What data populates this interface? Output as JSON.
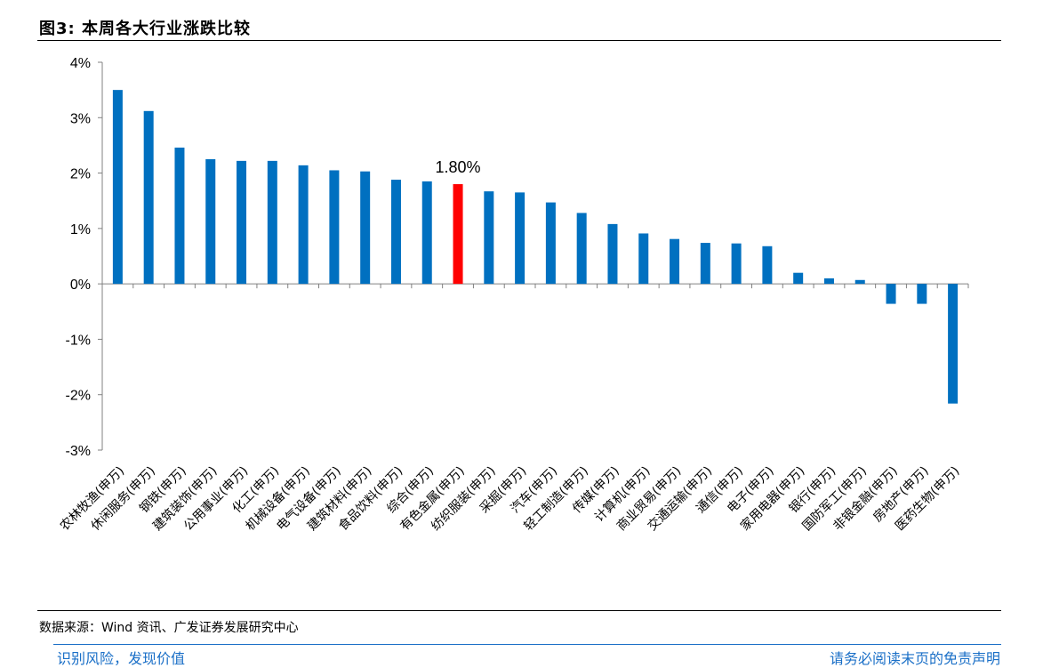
{
  "title": "图3:  本周各大行业涨跌比较",
  "source": "数据来源：Wind 资讯、广发证券发展研究中心",
  "footer": {
    "left": "识别风险，发现价值",
    "right": "请务必阅读末页的免责声明"
  },
  "colors": {
    "bar": "#0070C0",
    "highlight": "#FF0000",
    "axis": "#808080",
    "footer": "#1a6fc7"
  },
  "chart_data": {
    "type": "bar",
    "title": "本周各大行业涨跌比较",
    "xlabel": "",
    "ylabel": "",
    "ylim": [
      -3,
      4
    ],
    "yticks": [
      4,
      3,
      2,
      1,
      0,
      -1,
      -2,
      -3
    ],
    "ytick_labels": [
      "4%",
      "3%",
      "2%",
      "1%",
      "0%",
      "-1%",
      "-2%",
      "-3%"
    ],
    "categories": [
      "农林牧渔(申万)",
      "休闲服务(申万)",
      "钢铁(申万)",
      "建筑装饰(申万)",
      "公用事业(申万)",
      "化工(申万)",
      "机械设备(申万)",
      "电气设备(申万)",
      "建筑材料(申万)",
      "食品饮料(申万)",
      "综合(申万)",
      "有色金属(申万)",
      "纺织服装(申万)",
      "采掘(申万)",
      "汽车(申万)",
      "轻工制造(申万)",
      "传媒(申万)",
      "计算机(申万)",
      "商业贸易(申万)",
      "交通运输(申万)",
      "通信(申万)",
      "电子(申万)",
      "家用电器(申万)",
      "银行(申万)",
      "国防军工(申万)",
      "非银金融(申万)",
      "房地产(申万)",
      "医药生物(申万)"
    ],
    "values": [
      3.5,
      3.12,
      2.46,
      2.25,
      2.22,
      2.22,
      2.14,
      2.05,
      2.03,
      1.88,
      1.85,
      1.8,
      1.67,
      1.65,
      1.47,
      1.28,
      1.08,
      0.91,
      0.81,
      0.74,
      0.73,
      0.68,
      0.2,
      0.1,
      0.07,
      -0.36,
      -0.36,
      -2.16
    ],
    "highlight_index": 11,
    "annotation": {
      "text": "1.80%",
      "category": "有色金属(申万)"
    },
    "grid": false,
    "legend": "none"
  }
}
